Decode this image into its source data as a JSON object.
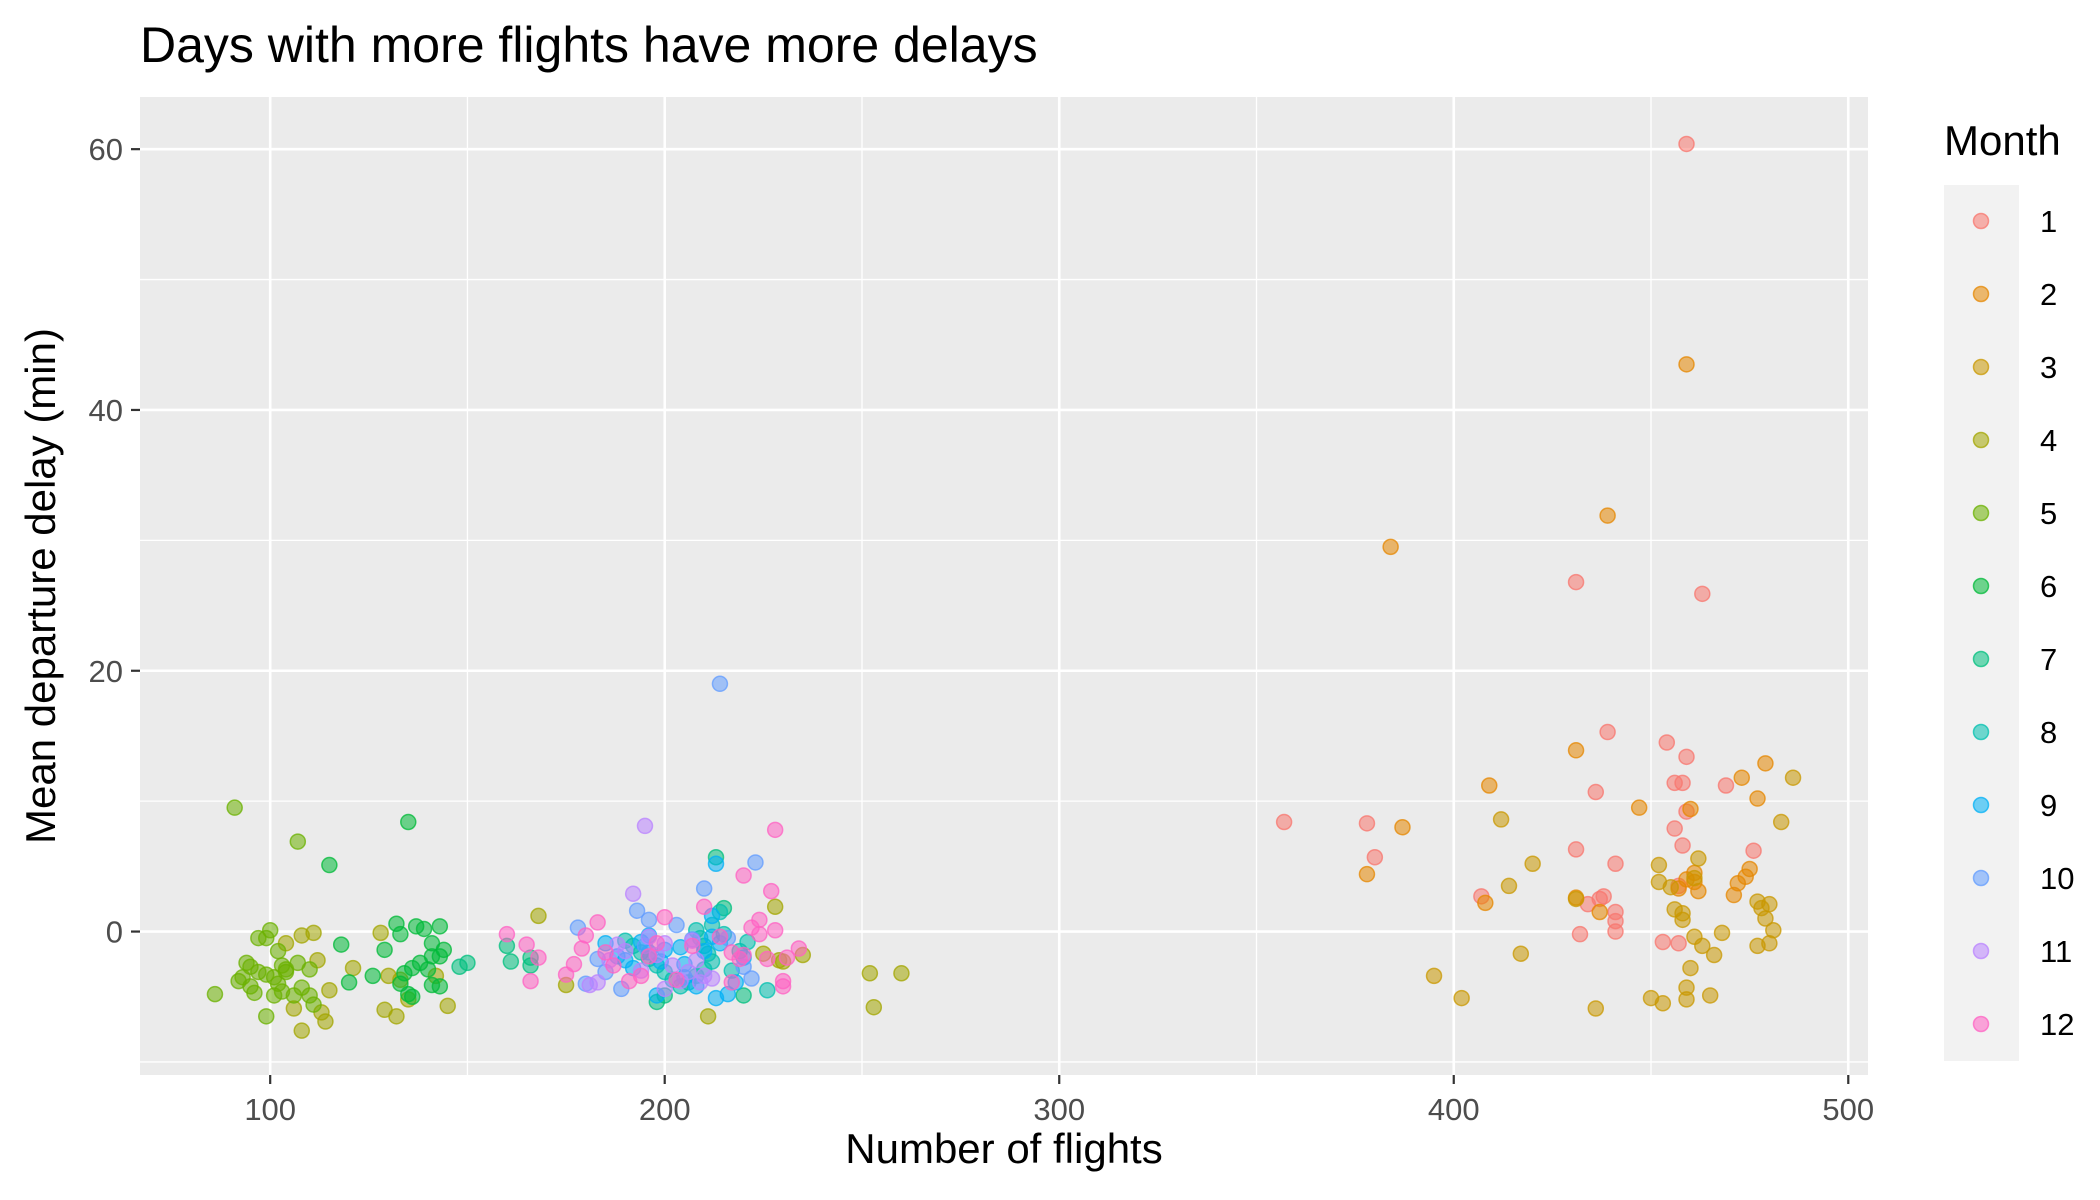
{
  "chart_data": {
    "type": "scatter",
    "title": "Days with more flights have more delays",
    "xlabel": "Number of flights",
    "ylabel": "Mean departure delay (min)",
    "xlim": [
      67,
      505
    ],
    "ylim": [
      -11,
      64
    ],
    "x_ticks": [
      100,
      200,
      300,
      400,
      500
    ],
    "y_ticks": [
      0,
      20,
      40,
      60
    ],
    "grid": true,
    "legend": {
      "title": "Month",
      "position": "right"
    },
    "series": [
      {
        "name": "1",
        "color": "#F8766D",
        "points": [
          [
            459,
            60.4
          ],
          [
            431,
            26.8
          ],
          [
            463,
            25.9
          ],
          [
            357,
            8.4
          ],
          [
            378,
            8.3
          ],
          [
            380,
            5.7
          ],
          [
            439,
            15.3
          ],
          [
            454,
            14.5
          ],
          [
            459,
            13.4
          ],
          [
            436,
            10.7
          ],
          [
            456,
            11.4
          ],
          [
            458,
            11.4
          ],
          [
            469,
            11.2
          ],
          [
            456,
            7.9
          ],
          [
            458,
            6.6
          ],
          [
            431,
            6.3
          ],
          [
            441,
            5.2
          ],
          [
            476,
            6.2
          ],
          [
            432,
            -0.2
          ],
          [
            441,
            1.5
          ],
          [
            438,
            2.7
          ],
          [
            434,
            2.1
          ],
          [
            437,
            2.5
          ],
          [
            441,
            0.8
          ],
          [
            441,
            0.0
          ],
          [
            453,
            -0.8
          ],
          [
            457,
            -0.9
          ],
          [
            459,
            9.2
          ],
          [
            457,
            3.5
          ],
          [
            407,
            2.7
          ]
        ]
      },
      {
        "name": "2",
        "color": "#E58700",
        "points": [
          [
            459,
            43.5
          ],
          [
            439,
            31.9
          ],
          [
            384,
            29.5
          ],
          [
            431,
            13.9
          ],
          [
            409,
            11.2
          ],
          [
            378,
            4.4
          ],
          [
            387,
            8.0
          ],
          [
            447,
            9.5
          ],
          [
            460,
            9.4
          ],
          [
            473,
            11.8
          ],
          [
            479,
            12.9
          ],
          [
            477,
            10.2
          ],
          [
            475,
            4.8
          ],
          [
            474,
            4.2
          ],
          [
            472,
            3.7
          ],
          [
            461,
            3.8
          ],
          [
            457,
            3.3
          ],
          [
            459,
            4.0
          ],
          [
            461,
            4.5
          ],
          [
            431,
            2.6
          ],
          [
            437,
            1.5
          ],
          [
            408,
            2.2
          ],
          [
            471,
            2.8
          ],
          [
            462,
            3.1
          ]
        ]
      },
      {
        "name": "3",
        "color": "#C99800",
        "points": [
          [
            486,
            11.8
          ],
          [
            483,
            8.4
          ],
          [
            462,
            5.6
          ],
          [
            452,
            5.1
          ],
          [
            452,
            3.8
          ],
          [
            461,
            4.1
          ],
          [
            455,
            3.4
          ],
          [
            420,
            5.2
          ],
          [
            414,
            3.5
          ],
          [
            412,
            8.6
          ],
          [
            417,
            -1.7
          ],
          [
            395,
            -3.4
          ],
          [
            402,
            -5.1
          ],
          [
            436,
            -5.9
          ],
          [
            450,
            -5.1
          ],
          [
            453,
            -5.5
          ],
          [
            459,
            -5.2
          ],
          [
            465,
            -4.9
          ],
          [
            459,
            -4.3
          ],
          [
            460,
            -2.8
          ],
          [
            463,
            -1.1
          ],
          [
            466,
            -1.8
          ],
          [
            468,
            -0.1
          ],
          [
            477,
            -1.1
          ],
          [
            480,
            -0.9
          ],
          [
            481,
            0.1
          ],
          [
            479,
            1.0
          ],
          [
            480,
            2.1
          ],
          [
            477,
            2.3
          ],
          [
            478,
            1.8
          ],
          [
            456,
            1.7
          ],
          [
            458,
            1.4
          ],
          [
            458,
            0.9
          ],
          [
            461,
            -0.4
          ],
          [
            431,
            2.5
          ]
        ]
      },
      {
        "name": "4",
        "color": "#A3A500",
        "points": [
          [
            168,
            1.2
          ],
          [
            175,
            -4.1
          ],
          [
            211,
            -6.5
          ],
          [
            228,
            1.9
          ],
          [
            235,
            -1.8
          ],
          [
            252,
            -3.2
          ],
          [
            253,
            -5.8
          ],
          [
            260,
            -3.2
          ],
          [
            225,
            -1.7
          ],
          [
            229,
            -2.2
          ],
          [
            230,
            -2.3
          ],
          [
            111,
            -0.1
          ],
          [
            115,
            -4.5
          ],
          [
            108,
            -0.3
          ],
          [
            104,
            -0.9
          ],
          [
            106,
            -5.9
          ],
          [
            108,
            -7.6
          ],
          [
            113,
            -6.2
          ],
          [
            114,
            -6.9
          ],
          [
            129,
            -6.0
          ],
          [
            132,
            -6.5
          ],
          [
            135,
            -5.2
          ],
          [
            142,
            -3.4
          ],
          [
            145,
            -5.7
          ],
          [
            133,
            -3.7
          ],
          [
            128,
            -0.1
          ],
          [
            130,
            -3.4
          ],
          [
            121,
            -2.8
          ],
          [
            112,
            -2.2
          ]
        ]
      },
      {
        "name": "5",
        "color": "#6BB100",
        "points": [
          [
            91,
            9.5
          ],
          [
            107,
            6.9
          ],
          [
            86,
            -4.8
          ],
          [
            97,
            -0.5
          ],
          [
            99,
            -0.5
          ],
          [
            100,
            0.1
          ],
          [
            102,
            -1.5
          ],
          [
            103,
            -2.6
          ],
          [
            104,
            -3.1
          ],
          [
            102,
            -4.0
          ],
          [
            99,
            -3.3
          ],
          [
            97,
            -3.1
          ],
          [
            95,
            -2.7
          ],
          [
            94,
            -2.4
          ],
          [
            93,
            -3.5
          ],
          [
            92,
            -3.8
          ],
          [
            95,
            -4.2
          ],
          [
            96,
            -4.7
          ],
          [
            99,
            -6.5
          ],
          [
            101,
            -4.9
          ],
          [
            103,
            -4.6
          ],
          [
            106,
            -4.9
          ],
          [
            108,
            -4.3
          ],
          [
            110,
            -4.9
          ],
          [
            111,
            -5.6
          ],
          [
            110,
            -2.9
          ],
          [
            107,
            -2.4
          ],
          [
            104,
            -2.9
          ],
          [
            101,
            -3.5
          ]
        ]
      },
      {
        "name": "6",
        "color": "#00BA38",
        "points": [
          [
            115,
            5.1
          ],
          [
            135,
            8.4
          ],
          [
            118,
            -1.0
          ],
          [
            120,
            -3.9
          ],
          [
            126,
            -3.4
          ],
          [
            129,
            -1.4
          ],
          [
            132,
            0.6
          ],
          [
            133,
            -0.2
          ],
          [
            137,
            0.4
          ],
          [
            139,
            0.2
          ],
          [
            141,
            -0.9
          ],
          [
            143,
            0.4
          ],
          [
            144,
            -1.4
          ],
          [
            143,
            -1.9
          ],
          [
            141,
            -1.9
          ],
          [
            138,
            -2.4
          ],
          [
            136,
            -2.8
          ],
          [
            134,
            -3.2
          ],
          [
            133,
            -4.0
          ],
          [
            135,
            -4.8
          ],
          [
            136,
            -5.0
          ],
          [
            141,
            -4.1
          ],
          [
            143,
            -4.2
          ],
          [
            140,
            -2.9
          ]
        ]
      },
      {
        "name": "7",
        "color": "#00BF7D",
        "points": [
          [
            150,
            -2.4
          ],
          [
            148,
            -2.7
          ],
          [
            160,
            -1.1
          ],
          [
            161,
            -2.3
          ],
          [
            166,
            -2.0
          ],
          [
            166,
            -2.6
          ],
          [
            213,
            5.7
          ],
          [
            215,
            1.8
          ],
          [
            198,
            -5.4
          ],
          [
            200,
            -4.9
          ],
          [
            220,
            -4.9
          ]
        ]
      },
      {
        "name": "8",
        "color": "#00C0AF",
        "points": [
          [
            208,
            0.1
          ],
          [
            209,
            -0.5
          ],
          [
            210,
            -1.1
          ],
          [
            211,
            -1.7
          ],
          [
            212,
            -2.3
          ],
          [
            210,
            -2.9
          ],
          [
            208,
            -3.4
          ],
          [
            206,
            -3.9
          ],
          [
            204,
            -4.2
          ],
          [
            202,
            -3.7
          ],
          [
            200,
            -3.1
          ],
          [
            198,
            -2.6
          ],
          [
            196,
            -2.1
          ],
          [
            194,
            -1.6
          ],
          [
            192,
            -1.1
          ],
          [
            190,
            -0.7
          ],
          [
            215,
            -0.2
          ],
          [
            217,
            -3.0
          ],
          [
            219,
            -1.5
          ],
          [
            221,
            -0.8
          ],
          [
            226,
            -4.5
          ],
          [
            212,
            0.5
          ],
          [
            214,
            1.5
          ]
        ]
      },
      {
        "name": "9",
        "color": "#00B0F6",
        "points": [
          [
            213,
            5.2
          ],
          [
            212,
            1.2
          ],
          [
            196,
            -0.3
          ],
          [
            204,
            -1.2
          ],
          [
            205,
            -2.5
          ],
          [
            210,
            -1.5
          ],
          [
            212,
            -0.4
          ],
          [
            214,
            -0.9
          ],
          [
            196,
            -1.6
          ],
          [
            192,
            -2.8
          ],
          [
            198,
            -4.9
          ],
          [
            199,
            -2.3
          ],
          [
            205,
            -3.5
          ],
          [
            208,
            -4.2
          ],
          [
            213,
            -5.1
          ],
          [
            216,
            -4.8
          ],
          [
            218,
            -3.9
          ],
          [
            220,
            -2.0
          ],
          [
            185,
            -0.9
          ],
          [
            188,
            -1.9
          ],
          [
            190,
            -2.2
          ],
          [
            194,
            -0.8
          ],
          [
            200,
            -1.4
          ]
        ]
      },
      {
        "name": "10",
        "color": "#619CFF",
        "points": [
          [
            214,
            19.0
          ],
          [
            223,
            5.3
          ],
          [
            210,
            3.3
          ],
          [
            193,
            1.6
          ],
          [
            196,
            0.9
          ],
          [
            203,
            0.5
          ],
          [
            207,
            -0.6
          ],
          [
            183,
            -2.1
          ],
          [
            185,
            -3.1
          ],
          [
            180,
            -4.0
          ],
          [
            178,
            0.3
          ],
          [
            216,
            -0.5
          ],
          [
            220,
            -2.7
          ],
          [
            222,
            -3.6
          ],
          [
            189,
            -4.4
          ],
          [
            195,
            -1.1
          ]
        ]
      },
      {
        "name": "11",
        "color": "#B983FF",
        "points": [
          [
            195,
            8.1
          ],
          [
            192,
            2.9
          ],
          [
            196,
            -0.4
          ],
          [
            198,
            -1.8
          ],
          [
            200,
            -0.9
          ],
          [
            202,
            -2.6
          ],
          [
            204,
            -3.8
          ],
          [
            206,
            -3.1
          ],
          [
            208,
            -2.2
          ],
          [
            210,
            -3.4
          ],
          [
            212,
            -3.6
          ],
          [
            194,
            -3.0
          ],
          [
            190,
            -1.5
          ],
          [
            188,
            -1.0
          ],
          [
            186,
            -2.2
          ],
          [
            183,
            -3.9
          ],
          [
            181,
            -4.1
          ],
          [
            200,
            -4.4
          ],
          [
            209,
            -3.9
          ],
          [
            207,
            -0.7
          ]
        ]
      },
      {
        "name": "12",
        "color": "#FF61C3",
        "points": [
          [
            228,
            7.8
          ],
          [
            220,
            4.3
          ],
          [
            227,
            3.1
          ],
          [
            210,
            1.9
          ],
          [
            224,
            0.9
          ],
          [
            222,
            0.3
          ],
          [
            224,
            -0.2
          ],
          [
            228,
            0.1
          ],
          [
            231,
            -2.0
          ],
          [
            234,
            -1.3
          ],
          [
            230,
            -3.8
          ],
          [
            230,
            -4.2
          ],
          [
            226,
            -2.1
          ],
          [
            219,
            -2.1
          ],
          [
            217,
            -1.6
          ],
          [
            214,
            -0.4
          ],
          [
            207,
            -1.1
          ],
          [
            200,
            1.1
          ],
          [
            198,
            -0.9
          ],
          [
            196,
            -1.9
          ],
          [
            194,
            -3.4
          ],
          [
            191,
            -3.8
          ],
          [
            187,
            -2.6
          ],
          [
            185,
            -1.6
          ],
          [
            183,
            0.7
          ],
          [
            180,
            -0.3
          ],
          [
            179,
            -1.3
          ],
          [
            177,
            -2.5
          ],
          [
            175,
            -3.3
          ],
          [
            165,
            -1.0
          ],
          [
            160,
            -0.2
          ],
          [
            166,
            -3.8
          ],
          [
            168,
            -2.0
          ],
          [
            203,
            -3.7
          ],
          [
            217,
            -3.9
          ],
          [
            220,
            -1.8
          ]
        ]
      }
    ]
  }
}
